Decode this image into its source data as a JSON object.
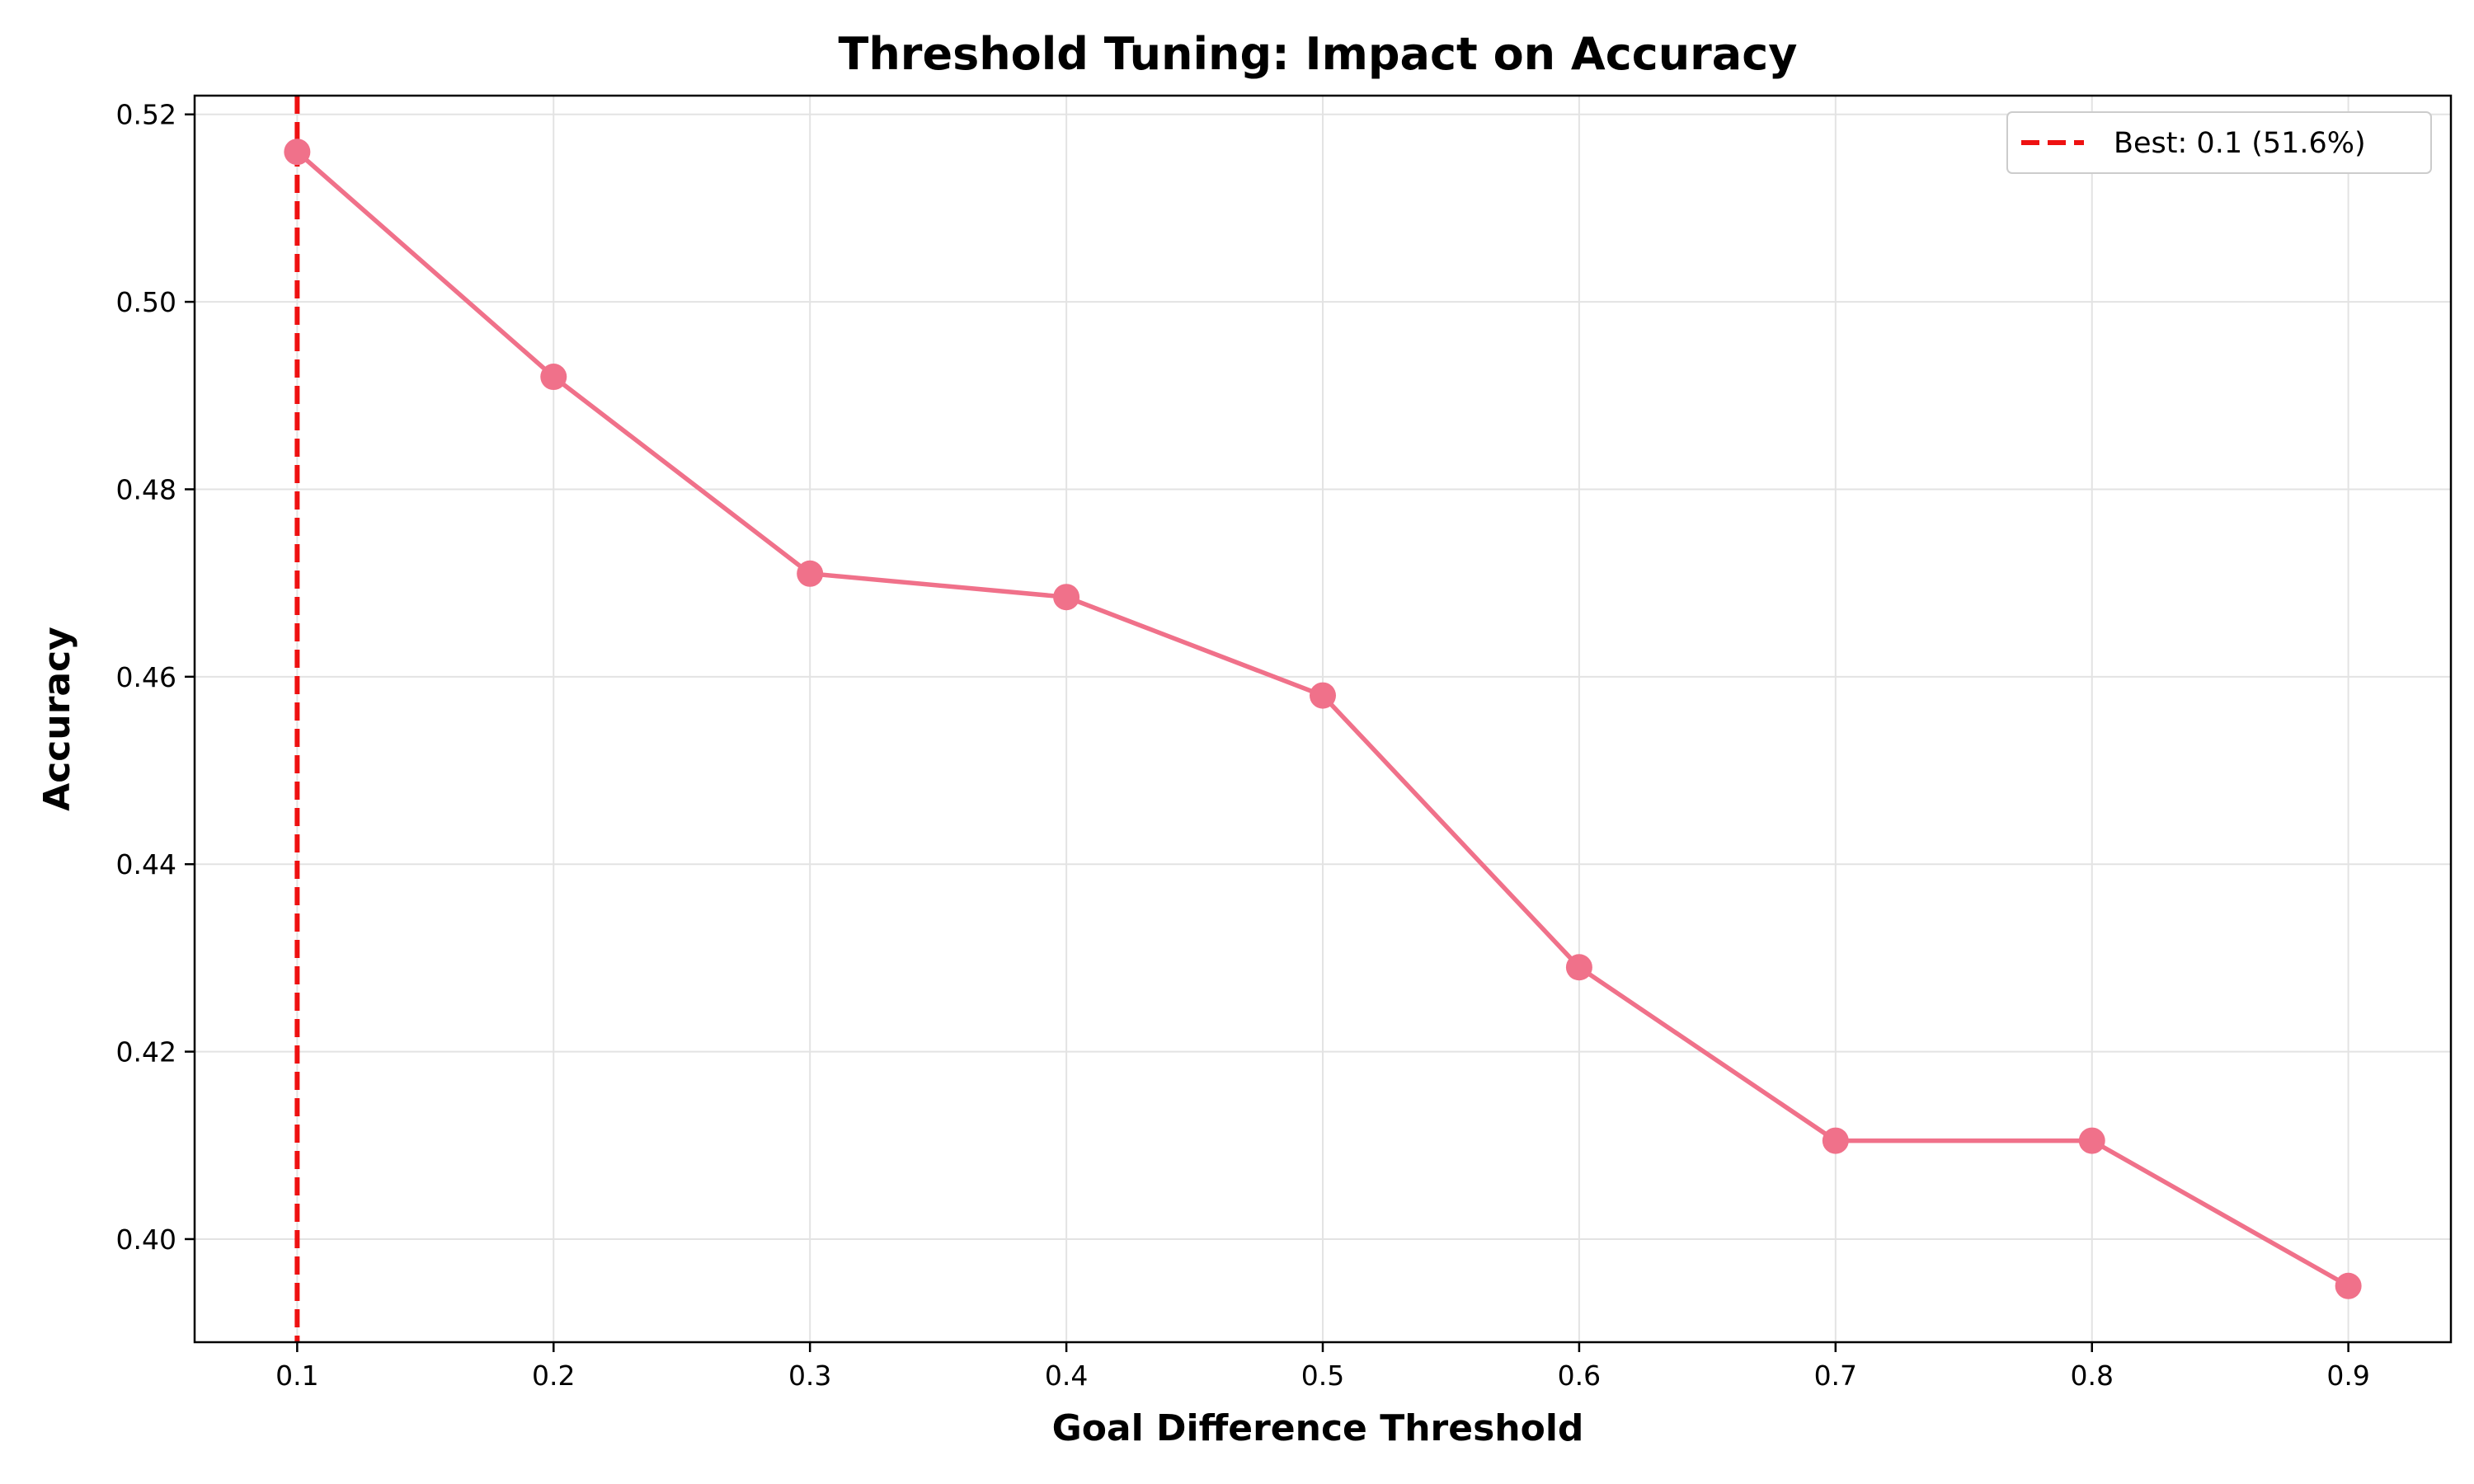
{
  "chart_data": {
    "type": "line",
    "title": "Threshold Tuning: Impact on Accuracy",
    "xlabel": "Goal Difference Threshold",
    "ylabel": "Accuracy",
    "x": [
      0.1,
      0.2,
      0.3,
      0.4,
      0.5,
      0.6,
      0.7,
      0.8,
      0.9
    ],
    "series": [
      {
        "values": [
          0.516,
          0.492,
          0.471,
          0.4685,
          0.458,
          0.429,
          0.4105,
          0.4105,
          0.395
        ],
        "color": "#f0718a",
        "marker": "circle"
      }
    ],
    "xticks": [
      "0.1",
      "0.2",
      "0.3",
      "0.4",
      "0.5",
      "0.6",
      "0.7",
      "0.8",
      "0.9"
    ],
    "yticks": [
      "0.40",
      "0.42",
      "0.44",
      "0.46",
      "0.48",
      "0.50",
      "0.52"
    ],
    "xlim": [
      0.06,
      0.94
    ],
    "ylim": [
      0.389,
      0.522
    ],
    "grid": true,
    "reference_line": {
      "orientation": "vertical",
      "x": 0.1,
      "style": "dashed",
      "color": "#ee1111",
      "label": "Best: 0.1 (51.6%)"
    },
    "legend_position": "top-right"
  }
}
